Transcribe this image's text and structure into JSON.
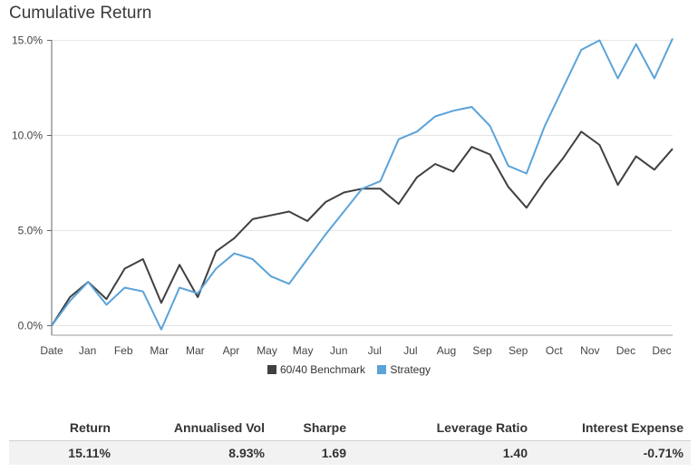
{
  "title": "Cumulative Return",
  "colors": {
    "benchmark": "#404040",
    "strategy": "#5ba3d9",
    "grid": "#e6e6e6"
  },
  "legend": {
    "benchmark": "60/40 Benchmark",
    "strategy": "Strategy"
  },
  "chart_data": {
    "type": "line",
    "x_tick_labels": [
      "Date",
      "Jan",
      "Feb",
      "Mar",
      "Mar",
      "Apr",
      "May",
      "May",
      "Jun",
      "Jul",
      "Jul",
      "Aug",
      "Sep",
      "Sep",
      "Oct",
      "Nov",
      "Dec",
      "Dec"
    ],
    "y_tick_labels": [
      "0.0%",
      "5.0%",
      "10.0%",
      "15.0%"
    ],
    "ylim": [
      -0.5,
      15.5
    ],
    "grid": true,
    "legend_position": "bottom-center",
    "x": [
      0,
      0.5,
      1,
      1.5,
      2,
      2.5,
      3,
      3.5,
      4,
      4.5,
      5,
      5.5,
      6,
      6.5,
      7,
      7.5,
      8,
      8.5,
      9,
      9.5,
      10,
      10.5,
      11,
      11.5,
      12,
      12.5,
      13,
      13.5,
      14,
      14.5,
      15,
      15.5,
      16,
      16.5,
      17
    ],
    "series": [
      {
        "name": "60/40 Benchmark",
        "values": [
          0.0,
          1.5,
          2.3,
          1.4,
          3.0,
          3.5,
          1.2,
          3.2,
          1.5,
          3.9,
          4.6,
          5.6,
          5.8,
          6.0,
          5.5,
          6.5,
          7.0,
          7.2,
          7.2,
          6.4,
          7.8,
          8.5,
          8.1,
          9.4,
          9.0,
          7.3,
          6.2,
          7.6,
          8.8,
          10.2,
          9.5,
          7.4,
          8.9,
          8.2,
          9.3
        ]
      },
      {
        "name": "Strategy",
        "values": [
          0.0,
          1.3,
          2.3,
          1.1,
          2.0,
          1.8,
          -0.2,
          2.0,
          1.7,
          3.0,
          3.8,
          3.5,
          2.6,
          2.2,
          3.5,
          4.8,
          6.0,
          7.2,
          7.6,
          9.8,
          10.2,
          11.0,
          11.3,
          11.5,
          10.5,
          8.4,
          8.0,
          10.5,
          12.5,
          14.5,
          15.0,
          13.0,
          14.8,
          13.0,
          15.1
        ]
      }
    ]
  },
  "stats": {
    "headers": [
      "Return",
      "Annualised Vol",
      "Sharpe",
      "Leverage Ratio",
      "Interest Expense"
    ],
    "values": [
      "15.11%",
      "8.93%",
      "1.69",
      "1.40",
      "-0.71%"
    ]
  }
}
